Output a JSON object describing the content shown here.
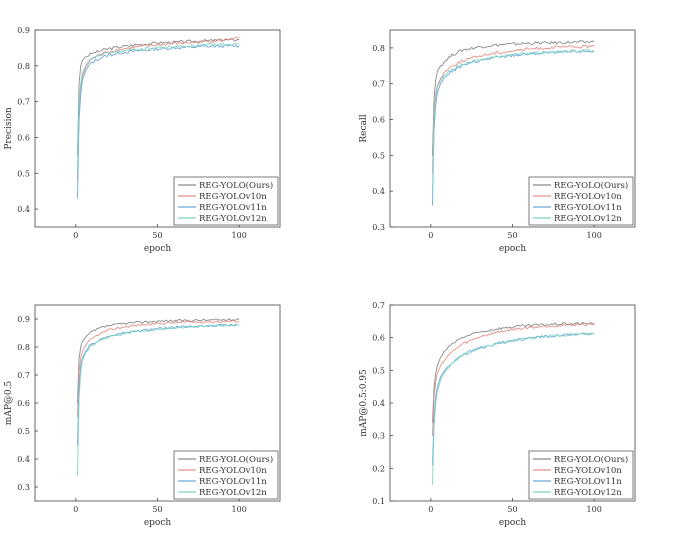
{
  "colors": {
    "REG-YOLO(Ours)": "#8a8a8a",
    "REG-YOLOv10n": "#e8928a",
    "REG-YOLOv11n": "#6fa8dc",
    "REG-YOLOv12n": "#7fd3c4"
  },
  "chart_data": [
    {
      "type": "line",
      "xlabel": "epoch",
      "ylabel": "Precision",
      "xlim": [
        -25,
        125
      ],
      "ylim": [
        0.35,
        0.9
      ],
      "xticks": [
        0,
        50,
        100
      ],
      "yticks": [
        0.4,
        0.5,
        0.6,
        0.7,
        0.8,
        0.9
      ],
      "legend": "bottom-right",
      "x": [
        1,
        2,
        3,
        4,
        6,
        8,
        10,
        15,
        20,
        30,
        40,
        50,
        60,
        70,
        80,
        90,
        100
      ],
      "series": [
        {
          "name": "REG-YOLO(Ours)",
          "values": [
            0.55,
            0.75,
            0.8,
            0.815,
            0.825,
            0.83,
            0.835,
            0.842,
            0.848,
            0.855,
            0.86,
            0.864,
            0.866,
            0.868,
            0.87,
            0.872,
            0.873
          ]
        },
        {
          "name": "REG-YOLOv10n",
          "values": [
            0.48,
            0.68,
            0.74,
            0.77,
            0.795,
            0.81,
            0.82,
            0.832,
            0.84,
            0.848,
            0.854,
            0.858,
            0.862,
            0.865,
            0.868,
            0.872,
            0.878
          ]
        },
        {
          "name": "REG-YOLOv11n",
          "values": [
            0.43,
            0.65,
            0.72,
            0.76,
            0.785,
            0.8,
            0.81,
            0.822,
            0.83,
            0.838,
            0.843,
            0.847,
            0.85,
            0.852,
            0.854,
            0.855,
            0.856
          ]
        },
        {
          "name": "REG-YOLOv12n",
          "values": [
            0.5,
            0.7,
            0.75,
            0.78,
            0.8,
            0.812,
            0.82,
            0.83,
            0.836,
            0.842,
            0.847,
            0.85,
            0.853,
            0.856,
            0.858,
            0.86,
            0.862
          ]
        }
      ]
    },
    {
      "type": "line",
      "xlabel": "epoch",
      "ylabel": "Recall",
      "xlim": [
        -25,
        125
      ],
      "ylim": [
        0.3,
        0.85
      ],
      "xticks": [
        0,
        50,
        100
      ],
      "yticks": [
        0.3,
        0.4,
        0.5,
        0.6,
        0.7,
        0.8
      ],
      "legend": "bottom-right",
      "x": [
        1,
        2,
        3,
        4,
        6,
        8,
        10,
        15,
        20,
        30,
        40,
        50,
        60,
        70,
        80,
        90,
        100
      ],
      "series": [
        {
          "name": "REG-YOLO(Ours)",
          "values": [
            0.5,
            0.66,
            0.71,
            0.735,
            0.75,
            0.76,
            0.77,
            0.785,
            0.795,
            0.803,
            0.808,
            0.811,
            0.813,
            0.814,
            0.815,
            0.816,
            0.817
          ]
        },
        {
          "name": "REG-YOLOv10n",
          "values": [
            0.45,
            0.62,
            0.67,
            0.695,
            0.715,
            0.73,
            0.74,
            0.755,
            0.765,
            0.778,
            0.786,
            0.792,
            0.797,
            0.8,
            0.802,
            0.803,
            0.804
          ]
        },
        {
          "name": "REG-YOLOv11n",
          "values": [
            0.36,
            0.57,
            0.64,
            0.675,
            0.7,
            0.715,
            0.725,
            0.74,
            0.752,
            0.765,
            0.773,
            0.779,
            0.783,
            0.786,
            0.788,
            0.79,
            0.791
          ]
        },
        {
          "name": "REG-YOLOv12n",
          "values": [
            0.4,
            0.6,
            0.66,
            0.69,
            0.71,
            0.72,
            0.73,
            0.745,
            0.755,
            0.767,
            0.775,
            0.781,
            0.785,
            0.788,
            0.79,
            0.791,
            0.792
          ]
        }
      ]
    },
    {
      "type": "line",
      "xlabel": "epoch",
      "ylabel": "mAP@0.5",
      "xlim": [
        -25,
        125
      ],
      "ylim": [
        0.25,
        0.95
      ],
      "xticks": [
        0,
        50,
        100
      ],
      "yticks": [
        0.3,
        0.4,
        0.5,
        0.6,
        0.7,
        0.8,
        0.9
      ],
      "legend": "bottom-right",
      "x": [
        1,
        2,
        3,
        4,
        6,
        8,
        10,
        15,
        20,
        30,
        40,
        50,
        60,
        70,
        80,
        90,
        100
      ],
      "series": [
        {
          "name": "REG-YOLO(Ours)",
          "values": [
            0.6,
            0.76,
            0.8,
            0.82,
            0.835,
            0.845,
            0.855,
            0.868,
            0.876,
            0.884,
            0.889,
            0.892,
            0.894,
            0.895,
            0.896,
            0.897,
            0.898
          ]
        },
        {
          "name": "REG-YOLOv10n",
          "values": [
            0.55,
            0.71,
            0.76,
            0.785,
            0.805,
            0.82,
            0.83,
            0.848,
            0.86,
            0.872,
            0.879,
            0.884,
            0.887,
            0.889,
            0.89,
            0.891,
            0.892
          ]
        },
        {
          "name": "REG-YOLOv11n",
          "values": [
            0.45,
            0.66,
            0.73,
            0.76,
            0.785,
            0.8,
            0.81,
            0.827,
            0.838,
            0.851,
            0.859,
            0.865,
            0.87,
            0.873,
            0.876,
            0.878,
            0.879
          ]
        },
        {
          "name": "REG-YOLOv12n",
          "values": [
            0.34,
            0.62,
            0.71,
            0.75,
            0.78,
            0.795,
            0.806,
            0.823,
            0.835,
            0.848,
            0.857,
            0.863,
            0.868,
            0.872,
            0.875,
            0.877,
            0.878
          ]
        }
      ]
    },
    {
      "type": "line",
      "xlabel": "epoch",
      "ylabel": "mAP@0.5:0.95",
      "xlim": [
        -25,
        125
      ],
      "ylim": [
        0.1,
        0.7
      ],
      "xticks": [
        0,
        50,
        100
      ],
      "yticks": [
        0.1,
        0.2,
        0.3,
        0.4,
        0.5,
        0.6,
        0.7
      ],
      "legend": "bottom-right",
      "x": [
        1,
        2,
        3,
        4,
        6,
        8,
        10,
        15,
        20,
        30,
        40,
        50,
        60,
        70,
        80,
        90,
        100
      ],
      "series": [
        {
          "name": "REG-YOLO(Ours)",
          "values": [
            0.34,
            0.45,
            0.49,
            0.515,
            0.54,
            0.555,
            0.567,
            0.588,
            0.602,
            0.617,
            0.627,
            0.633,
            0.637,
            0.64,
            0.642,
            0.643,
            0.644
          ]
        },
        {
          "name": "REG-YOLOv10n",
          "values": [
            0.3,
            0.42,
            0.465,
            0.49,
            0.515,
            0.53,
            0.542,
            0.565,
            0.582,
            0.603,
            0.616,
            0.625,
            0.631,
            0.635,
            0.638,
            0.64,
            0.641
          ]
        },
        {
          "name": "REG-YOLOv11n",
          "values": [
            0.21,
            0.36,
            0.42,
            0.45,
            0.48,
            0.497,
            0.51,
            0.533,
            0.549,
            0.569,
            0.582,
            0.592,
            0.599,
            0.604,
            0.608,
            0.611,
            0.613
          ]
        },
        {
          "name": "REG-YOLOv12n",
          "values": [
            0.15,
            0.33,
            0.4,
            0.435,
            0.47,
            0.49,
            0.505,
            0.53,
            0.547,
            0.568,
            0.581,
            0.591,
            0.598,
            0.603,
            0.607,
            0.61,
            0.612
          ]
        }
      ]
    }
  ]
}
